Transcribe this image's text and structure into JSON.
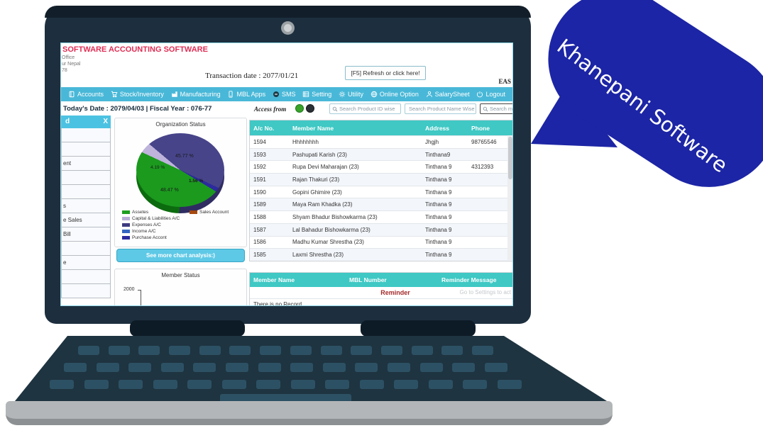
{
  "bubble": {
    "text": "Khanepani Software",
    "color": "#1c25a5"
  },
  "screen": {
    "header": {
      "title": "SOFTWARE ACCOUNTING SOFTWARE",
      "address_fragments": [
        "Office",
        "ur Nepal",
        "78"
      ],
      "transaction_date": "Transaction date : 2077/01/21",
      "refresh_button": "[F5] Refresh or click here!",
      "right_fragment": "EAS"
    },
    "menu": {
      "items": [
        "Accounts",
        "Stock/Inventory",
        "Manufacturing",
        "MBL Apps",
        "SMS",
        "Setting",
        "Utility",
        "Online Option",
        "SalarySheet",
        "Logout"
      ]
    },
    "toolbar": {
      "todays_date": "Today's Date : 2079/04/03 | Fiscal Year : 076-77",
      "access_from_label": "Access from",
      "search_product_id_placeholder": "Search Product ID wise",
      "search_product_name_placeholder": "Search Product Name Wise",
      "search_member_placeholder": "Search m"
    },
    "sidebar": {
      "header_fragment": "d",
      "close_label": "X",
      "rows": [
        {
          "label": ""
        },
        {
          "label": ""
        },
        {
          "label": "ent"
        },
        {
          "label": ""
        },
        {
          "label": ""
        },
        {
          "label": "s"
        },
        {
          "label": "e Sales"
        },
        {
          "label": "Bill"
        },
        {
          "label": ""
        },
        {
          "label": "e"
        },
        {
          "label": ""
        },
        {
          "label": ""
        }
      ]
    },
    "org_panel": {
      "see_more_button": "See more chart analysis:)"
    },
    "main_table": {
      "headers": {
        "acc": "A/c No.",
        "name": "Member Name",
        "address": "Address",
        "phone": "Phone"
      },
      "rows": [
        {
          "acc": "1594",
          "name": "Hhhhhhhh",
          "address": "Jhgjh",
          "phone": "98765546"
        },
        {
          "acc": "1593",
          "name": "Pashupati Karish (23)",
          "address": "Tinthana9",
          "phone": ""
        },
        {
          "acc": "1592",
          "name": "Rupa Devi Maharajan (23)",
          "address": "Tinthana 9",
          "phone": "4312393"
        },
        {
          "acc": "1591",
          "name": "Rajan Thakuri (23)",
          "address": "Tinthana 9",
          "phone": ""
        },
        {
          "acc": "1590",
          "name": "Gopini Ghimire (23)",
          "address": "Tinthana 9",
          "phone": ""
        },
        {
          "acc": "1589",
          "name": "Maya Ram Khadka (23)",
          "address": "Tinthana 9",
          "phone": ""
        },
        {
          "acc": "1588",
          "name": "Shyam Bhadur Bishowkarma (23)",
          "address": "Tinthana 9",
          "phone": ""
        },
        {
          "acc": "1587",
          "name": "Lal Bahadur Bishowkarma (23)",
          "address": "Tinthana 9",
          "phone": ""
        },
        {
          "acc": "1586",
          "name": "Madhu Kumar Shrestha (23)",
          "address": "Tinthana 9",
          "phone": ""
        },
        {
          "acc": "1585",
          "name": "Laxmi Shrestha (23)",
          "address": "Tinthana 9",
          "phone": ""
        }
      ]
    },
    "reminder_table": {
      "headers": {
        "name": "Member Name",
        "mbl": "MBL Number",
        "message": "Reminder Message"
      },
      "reminder_label": "Reminder",
      "settings_hint": "Go to Settings to act",
      "empty_text": "There is no Record."
    },
    "colors": {
      "menu_bar": "#49b8d8",
      "table_header": "#3fc8c4",
      "title_red": "#e02e55",
      "reminder_red": "#a42a2a"
    }
  },
  "chart_data": [
    {
      "type": "pie",
      "title": "Organization Status",
      "labels": [
        "Assetes",
        "Capital & Liabilities A/C",
        "Expenses A/C",
        "Income A/C",
        "Purchase Accont",
        "Sales Account"
      ],
      "values": [
        48.47,
        4.19,
        45.77,
        0,
        1.56,
        0
      ],
      "colors": [
        "#1f9e1f",
        "#b9aed6",
        "#3d3a80",
        "#3465c0",
        "#2c2a9e",
        "#a5490f"
      ],
      "slice_labels": {
        "assetes": "48.47 %",
        "capital": "4.19 %",
        "expenses": "45.77 %",
        "purchase": "1.56 %"
      },
      "legend_position": "bottom",
      "style": "3d"
    },
    {
      "type": "bar",
      "title": "Member Status",
      "y_ticks": [
        2000
      ],
      "values": []
    }
  ]
}
